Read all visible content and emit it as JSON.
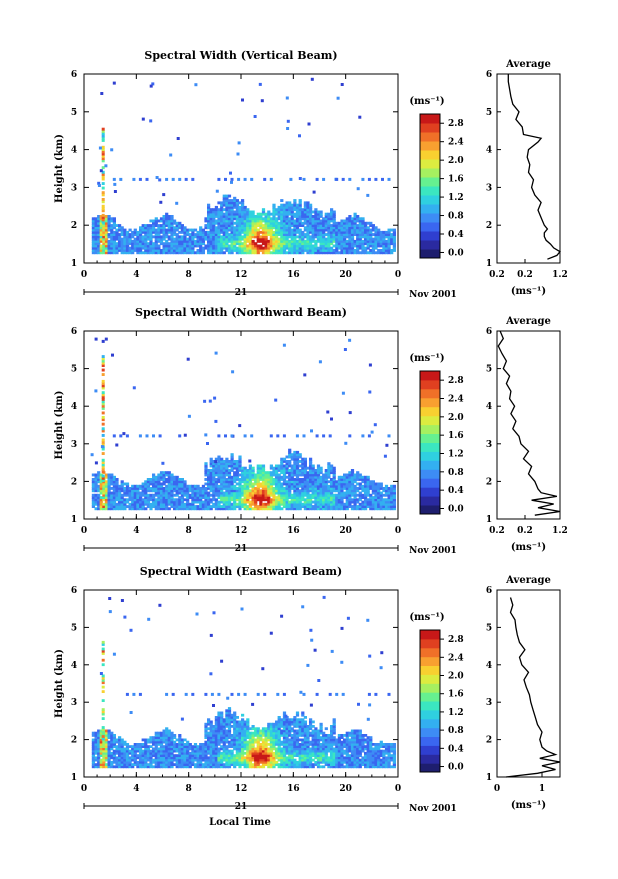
{
  "footer_xlabel": "Local Time",
  "chart_data": [
    {
      "type": "heatmap",
      "title": "Spectral Width (Vertical Beam)",
      "ylabel": "Height (km)",
      "ylim": [
        1,
        6
      ],
      "yticks": [
        "1",
        "2",
        "3",
        "4",
        "5",
        "6"
      ],
      "xlim": [
        0,
        24
      ],
      "xticks": [
        "0",
        "4",
        "8",
        "12",
        "16",
        "20",
        "0"
      ],
      "date_day": "21",
      "date_label": "Nov 2001",
      "colorbar": {
        "unit": "(ms⁻¹)",
        "range": [
          0.0,
          2.8
        ],
        "ticks": [
          "0.0",
          "0.4",
          "0.8",
          "1.2",
          "1.6",
          "2.0",
          "2.4",
          "2.8"
        ],
        "colors": [
          "#1e1e6e",
          "#2a2aa0",
          "#2f3fd0",
          "#3a66f0",
          "#3d8cf5",
          "#33b0f0",
          "#2fd0e0",
          "#3be6c0",
          "#66f090",
          "#a6f060",
          "#dcec40",
          "#f8d030",
          "#f8a030",
          "#f07028",
          "#e04020",
          "#c81818"
        ]
      },
      "average": {
        "title": "Average",
        "xlabel": "(ms⁻¹)",
        "xticks": [
          "0.2",
          "0.2",
          "1.2"
        ],
        "xlim": [
          0.2,
          1.2
        ],
        "height": [
          1.1,
          1.2,
          1.3,
          1.4,
          1.5,
          1.6,
          1.7,
          1.8,
          1.9,
          2.0,
          2.2,
          2.4,
          2.6,
          2.8,
          3.0,
          3.2,
          3.4,
          3.6,
          3.8,
          4.0,
          4.2,
          4.3,
          4.4,
          4.6,
          4.8,
          5.0,
          5.2,
          5.4,
          5.6,
          5.8,
          6.0
        ],
        "width": [
          1.0,
          1.15,
          1.2,
          1.1,
          1.05,
          0.98,
          0.95,
          0.95,
          1.0,
          0.95,
          0.9,
          0.85,
          0.9,
          0.8,
          0.75,
          0.78,
          0.7,
          0.72,
          0.68,
          0.7,
          0.85,
          0.9,
          0.62,
          0.6,
          0.5,
          0.55,
          0.45,
          0.42,
          0.4,
          0.38,
          0.38
        ]
      }
    },
    {
      "type": "heatmap",
      "title": "Spectral Width (Northward Beam)",
      "ylabel": "Height (km)",
      "ylim": [
        1,
        6
      ],
      "yticks": [
        "1",
        "2",
        "3",
        "4",
        "5",
        "6"
      ],
      "xlim": [
        0,
        24
      ],
      "xticks": [
        "0",
        "4",
        "8",
        "12",
        "16",
        "20",
        "0"
      ],
      "date_day": "21",
      "date_label": "Nov 2001",
      "colorbar": {
        "unit": "(ms⁻¹)",
        "range": [
          0.0,
          2.8
        ],
        "ticks": [
          "0.0",
          "0.4",
          "0.8",
          "1.2",
          "1.6",
          "2.0",
          "2.4",
          "2.8"
        ],
        "colors": [
          "#1e1e6e",
          "#2a2aa0",
          "#2f3fd0",
          "#3a66f0",
          "#3d8cf5",
          "#33b0f0",
          "#2fd0e0",
          "#3be6c0",
          "#66f090",
          "#a6f060",
          "#dcec40",
          "#f8d030",
          "#f8a030",
          "#f07028",
          "#e04020",
          "#c81818"
        ]
      },
      "average": {
        "title": "Average",
        "xlabel": "(ms⁻¹)",
        "xticks": [
          "0.2",
          "0.2",
          "1.2"
        ],
        "xlim": [
          0.2,
          1.2
        ],
        "height": [
          1.1,
          1.2,
          1.3,
          1.4,
          1.5,
          1.6,
          1.7,
          1.8,
          2.0,
          2.2,
          2.4,
          2.6,
          2.8,
          3.0,
          3.2,
          3.4,
          3.6,
          3.8,
          4.0,
          4.2,
          4.4,
          4.6,
          4.8,
          5.0,
          5.2,
          5.4,
          5.6,
          5.8,
          6.0
        ],
        "width": [
          0.8,
          1.2,
          0.85,
          1.1,
          0.75,
          1.15,
          0.9,
          0.85,
          0.8,
          0.7,
          0.75,
          0.62,
          0.7,
          0.58,
          0.55,
          0.45,
          0.5,
          0.42,
          0.48,
          0.4,
          0.42,
          0.35,
          0.4,
          0.3,
          0.35,
          0.28,
          0.22,
          0.3,
          0.25
        ]
      }
    },
    {
      "type": "heatmap",
      "title": "Spectral Width (Eastward Beam)",
      "ylabel": "Height (km)",
      "ylim": [
        1,
        6
      ],
      "yticks": [
        "1",
        "2",
        "3",
        "4",
        "5",
        "6"
      ],
      "xlim": [
        0,
        24
      ],
      "xticks": [
        "0",
        "4",
        "8",
        "12",
        "16",
        "20",
        "0"
      ],
      "date_day": "21",
      "date_label": "Nov 2001",
      "colorbar": {
        "unit": "(ms⁻¹)",
        "range": [
          0.0,
          2.8
        ],
        "ticks": [
          "0.0",
          "0.4",
          "0.8",
          "1.2",
          "1.6",
          "2.0",
          "2.4",
          "2.8"
        ],
        "colors": [
          "#1e1e6e",
          "#2a2aa0",
          "#2f3fd0",
          "#3a66f0",
          "#3d8cf5",
          "#33b0f0",
          "#2fd0e0",
          "#3be6c0",
          "#66f090",
          "#a6f060",
          "#dcec40",
          "#f8d030",
          "#f8a030",
          "#f07028",
          "#e04020",
          "#c81818"
        ]
      },
      "average": {
        "title": "Average",
        "xlabel": "(ms⁻¹)",
        "xticks": [
          "0",
          "1"
        ],
        "xlim": [
          0,
          1.4
        ],
        "height": [
          1.0,
          1.1,
          1.2,
          1.3,
          1.4,
          1.5,
          1.6,
          1.7,
          1.8,
          2.0,
          2.2,
          2.4,
          2.6,
          2.8,
          3.0,
          3.2,
          3.4,
          3.6,
          3.8,
          4.0,
          4.2,
          4.4,
          4.6,
          4.8,
          5.0,
          5.2,
          5.4,
          5.6,
          5.8
        ],
        "width": [
          0.2,
          0.9,
          1.3,
          1.0,
          1.4,
          0.95,
          1.3,
          1.1,
          1.0,
          0.95,
          1.0,
          0.9,
          0.85,
          0.8,
          0.75,
          0.72,
          0.65,
          0.6,
          0.7,
          0.55,
          0.5,
          0.62,
          0.5,
          0.45,
          0.42,
          0.4,
          0.3,
          0.35,
          0.3
        ]
      }
    }
  ]
}
